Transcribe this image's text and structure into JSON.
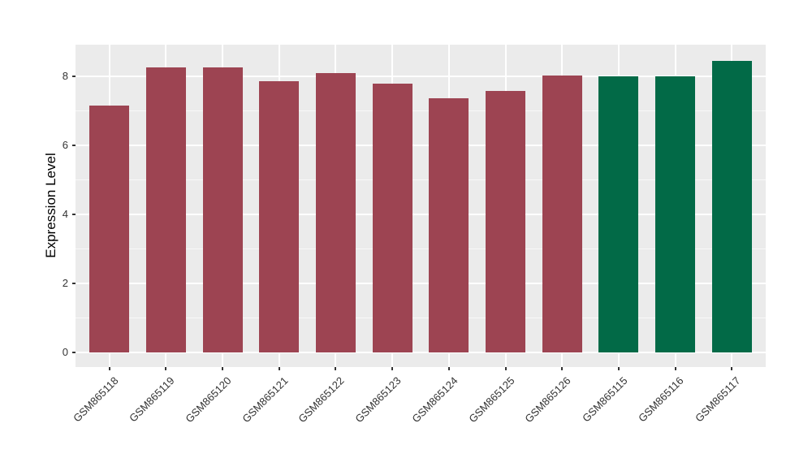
{
  "chart_data": {
    "type": "bar",
    "title": "",
    "xlabel": "",
    "ylabel": "Expression Level",
    "categories": [
      "GSM865118",
      "GSM865119",
      "GSM865120",
      "GSM865121",
      "GSM865122",
      "GSM865123",
      "GSM865124",
      "GSM865125",
      "GSM865126",
      "GSM865115",
      "GSM865116",
      "GSM865117"
    ],
    "values": [
      7.16,
      8.27,
      8.27,
      7.86,
      8.09,
      7.78,
      7.36,
      7.57,
      8.02,
      7.99,
      7.99,
      8.45
    ],
    "bar_colors": [
      "#9D4452",
      "#9D4452",
      "#9D4452",
      "#9D4452",
      "#9D4452",
      "#9D4452",
      "#9D4452",
      "#9D4452",
      "#9D4452",
      "#026A47",
      "#026A47",
      "#026A47"
    ],
    "groups": [
      {
        "name": "group-red",
        "color": "#9D4452",
        "categories": [
          "GSM865118",
          "GSM865119",
          "GSM865120",
          "GSM865121",
          "GSM865122",
          "GSM865123",
          "GSM865124",
          "GSM865125",
          "GSM865126"
        ]
      },
      {
        "name": "group-green",
        "color": "#026A47",
        "categories": [
          "GSM865115",
          "GSM865116",
          "GSM865117"
        ]
      }
    ],
    "yticks": [
      0,
      2,
      4,
      6,
      8
    ],
    "y_minor_ticks": [
      1,
      3,
      5,
      7
    ],
    "ylim": [
      0,
      8.92
    ],
    "grid": "on",
    "legend": "none",
    "panel_bg": "#EBEBEB",
    "gridline_color": "#FFFFFF",
    "tick_label_color": "#333333",
    "axis_title_color": "#000000",
    "x_label_rotation_deg": 45
  }
}
